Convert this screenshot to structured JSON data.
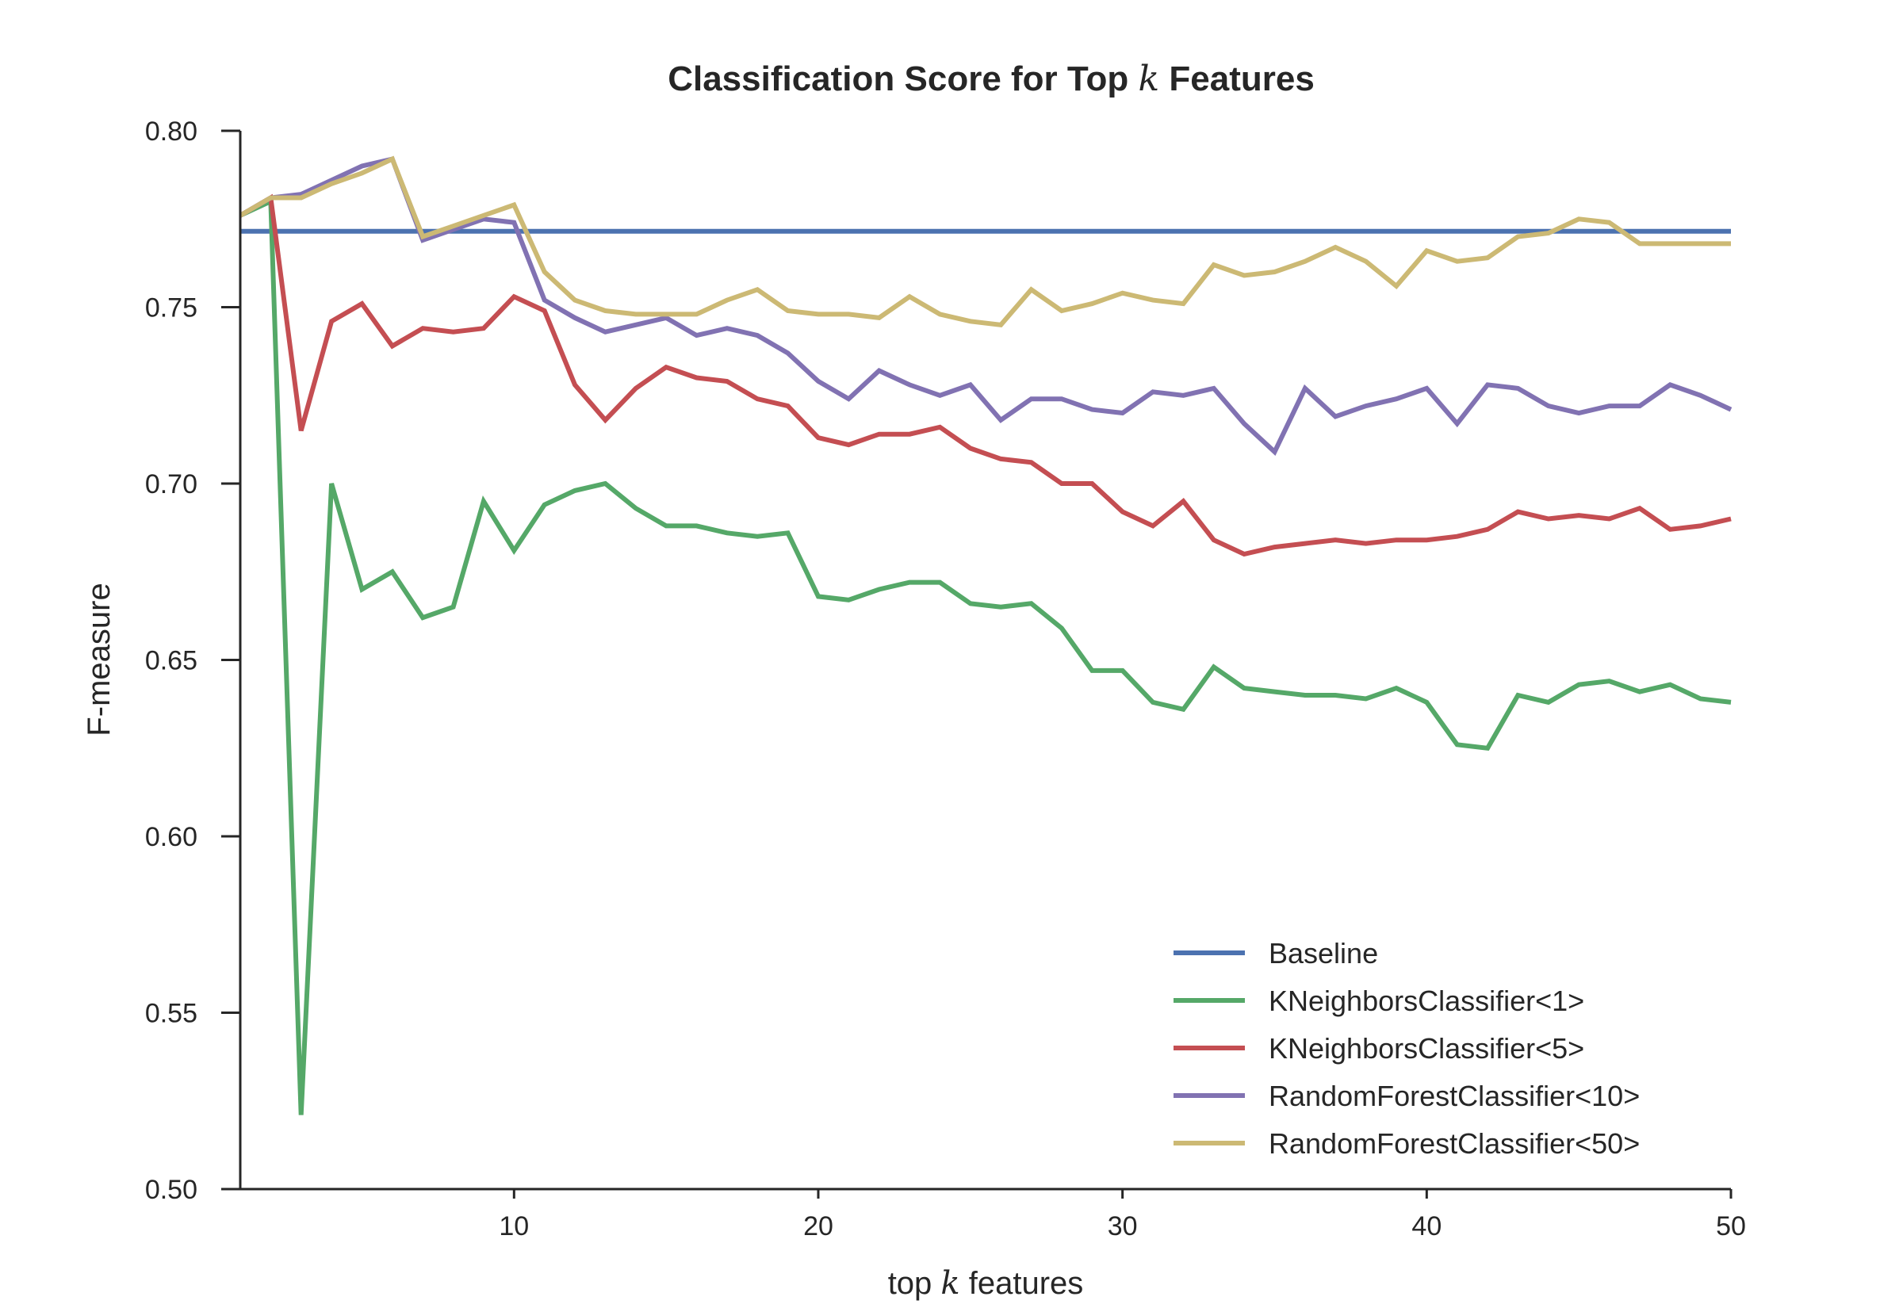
{
  "chart_data": {
    "type": "line",
    "title_prefix": "Classification Score for Top ",
    "title_var": "k",
    "title_suffix": " Features",
    "xlabel_prefix": "top ",
    "xlabel_var": "k",
    "xlabel_suffix": " features",
    "ylabel": "F-measure",
    "xlim": [
      1,
      50
    ],
    "ylim": [
      0.5,
      0.8
    ],
    "xticks": [
      10,
      20,
      30,
      40,
      50
    ],
    "yticks": [
      0.5,
      0.55,
      0.6,
      0.65,
      0.7,
      0.75,
      0.8
    ],
    "ytick_labels": [
      "0.50",
      "0.55",
      "0.60",
      "0.65",
      "0.70",
      "0.75",
      "0.80"
    ],
    "grid": false,
    "legend_position": "lower-right",
    "x": [
      1,
      2,
      3,
      4,
      5,
      6,
      7,
      8,
      9,
      10,
      11,
      12,
      13,
      14,
      15,
      16,
      17,
      18,
      19,
      20,
      21,
      22,
      23,
      24,
      25,
      26,
      27,
      28,
      29,
      30,
      31,
      32,
      33,
      34,
      35,
      36,
      37,
      38,
      39,
      40,
      41,
      42,
      43,
      44,
      45,
      46,
      47,
      48,
      49,
      50
    ],
    "series": [
      {
        "name": "Baseline",
        "color": "#4c72b0",
        "values": [
          0.7715,
          0.7715,
          0.7715,
          0.7715,
          0.7715,
          0.7715,
          0.7715,
          0.7715,
          0.7715,
          0.7715,
          0.7715,
          0.7715,
          0.7715,
          0.7715,
          0.7715,
          0.7715,
          0.7715,
          0.7715,
          0.7715,
          0.7715,
          0.7715,
          0.7715,
          0.7715,
          0.7715,
          0.7715,
          0.7715,
          0.7715,
          0.7715,
          0.7715,
          0.7715,
          0.7715,
          0.7715,
          0.7715,
          0.7715,
          0.7715,
          0.7715,
          0.7715,
          0.7715,
          0.7715,
          0.7715,
          0.7715,
          0.7715,
          0.7715,
          0.7715,
          0.7715,
          0.7715,
          0.7715,
          0.7715,
          0.7715,
          0.7715
        ]
      },
      {
        "name": "KNeighborsClassifier<1>",
        "color": "#55a868",
        "values": [
          0.776,
          0.78,
          0.521,
          0.7,
          0.67,
          0.675,
          0.662,
          0.665,
          0.695,
          0.681,
          0.694,
          0.698,
          0.7,
          0.693,
          0.688,
          0.688,
          0.686,
          0.685,
          0.686,
          0.668,
          0.667,
          0.67,
          0.672,
          0.672,
          0.666,
          0.665,
          0.666,
          0.659,
          0.647,
          0.647,
          0.638,
          0.636,
          0.648,
          0.642,
          0.641,
          0.64,
          0.64,
          0.639,
          0.642,
          0.638,
          0.626,
          0.625,
          0.64,
          0.638,
          0.643,
          0.644,
          0.641,
          0.643,
          0.639,
          0.638
        ]
      },
      {
        "name": "KNeighborsClassifier<5>",
        "color": "#c44e52",
        "values": [
          0.776,
          0.781,
          0.715,
          0.746,
          0.751,
          0.739,
          0.744,
          0.743,
          0.744,
          0.753,
          0.749,
          0.728,
          0.718,
          0.727,
          0.733,
          0.73,
          0.729,
          0.724,
          0.722,
          0.713,
          0.711,
          0.714,
          0.714,
          0.716,
          0.71,
          0.707,
          0.706,
          0.7,
          0.7,
          0.692,
          0.688,
          0.695,
          0.684,
          0.68,
          0.682,
          0.683,
          0.684,
          0.683,
          0.684,
          0.684,
          0.685,
          0.687,
          0.692,
          0.69,
          0.691,
          0.69,
          0.693,
          0.687,
          0.688,
          0.69
        ]
      },
      {
        "name": "RandomForestClassifier<10>",
        "color": "#8172b2",
        "values": [
          0.776,
          0.781,
          0.782,
          0.786,
          0.79,
          0.792,
          0.769,
          0.772,
          0.775,
          0.774,
          0.752,
          0.747,
          0.743,
          0.745,
          0.747,
          0.742,
          0.744,
          0.742,
          0.737,
          0.729,
          0.724,
          0.732,
          0.728,
          0.725,
          0.728,
          0.718,
          0.724,
          0.724,
          0.721,
          0.72,
          0.726,
          0.725,
          0.727,
          0.717,
          0.709,
          0.727,
          0.719,
          0.722,
          0.724,
          0.727,
          0.717,
          0.728,
          0.727,
          0.722,
          0.72,
          0.722,
          0.722,
          0.728,
          0.725,
          0.721
        ]
      },
      {
        "name": "RandomForestClassifier<50>",
        "color": "#ccb974",
        "values": [
          0.776,
          0.781,
          0.781,
          0.785,
          0.788,
          0.792,
          0.77,
          0.773,
          0.776,
          0.779,
          0.76,
          0.752,
          0.749,
          0.748,
          0.748,
          0.748,
          0.752,
          0.755,
          0.749,
          0.748,
          0.748,
          0.747,
          0.753,
          0.748,
          0.746,
          0.745,
          0.755,
          0.749,
          0.751,
          0.754,
          0.752,
          0.751,
          0.762,
          0.759,
          0.76,
          0.763,
          0.767,
          0.763,
          0.756,
          0.766,
          0.763,
          0.764,
          0.77,
          0.771,
          0.775,
          0.774,
          0.768,
          0.768,
          0.768,
          0.768
        ]
      }
    ]
  }
}
